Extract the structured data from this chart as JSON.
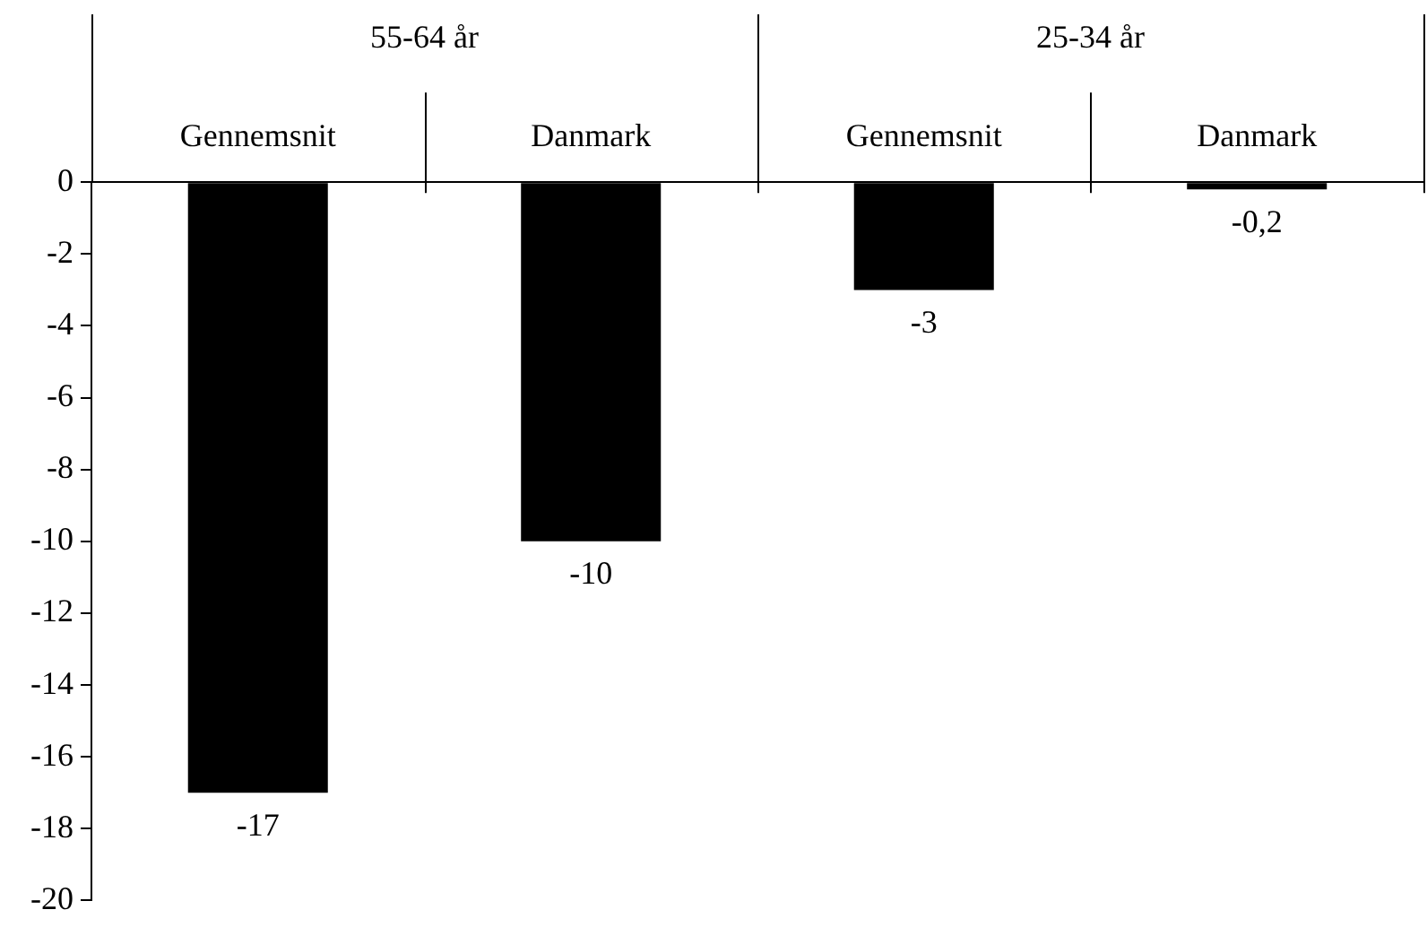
{
  "chart_data": {
    "type": "bar",
    "categories": [
      "Gennemsnit",
      "Danmark",
      "Gennemsnit",
      "Danmark"
    ],
    "values": [
      -17,
      -10,
      -3,
      -0.2
    ],
    "color": "#000000",
    "value_labels": [
      "-17",
      "-10",
      "-3",
      "-0,2"
    ],
    "annotations": [
      "55-64 år",
      "25-34 år"
    ],
    "ylim": [
      -20,
      0
    ],
    "yticks": [
      -20,
      -18,
      -16,
      -14,
      -12,
      -10,
      -8,
      -6,
      -4,
      -2,
      0
    ],
    "grid": false,
    "legend": false
  }
}
